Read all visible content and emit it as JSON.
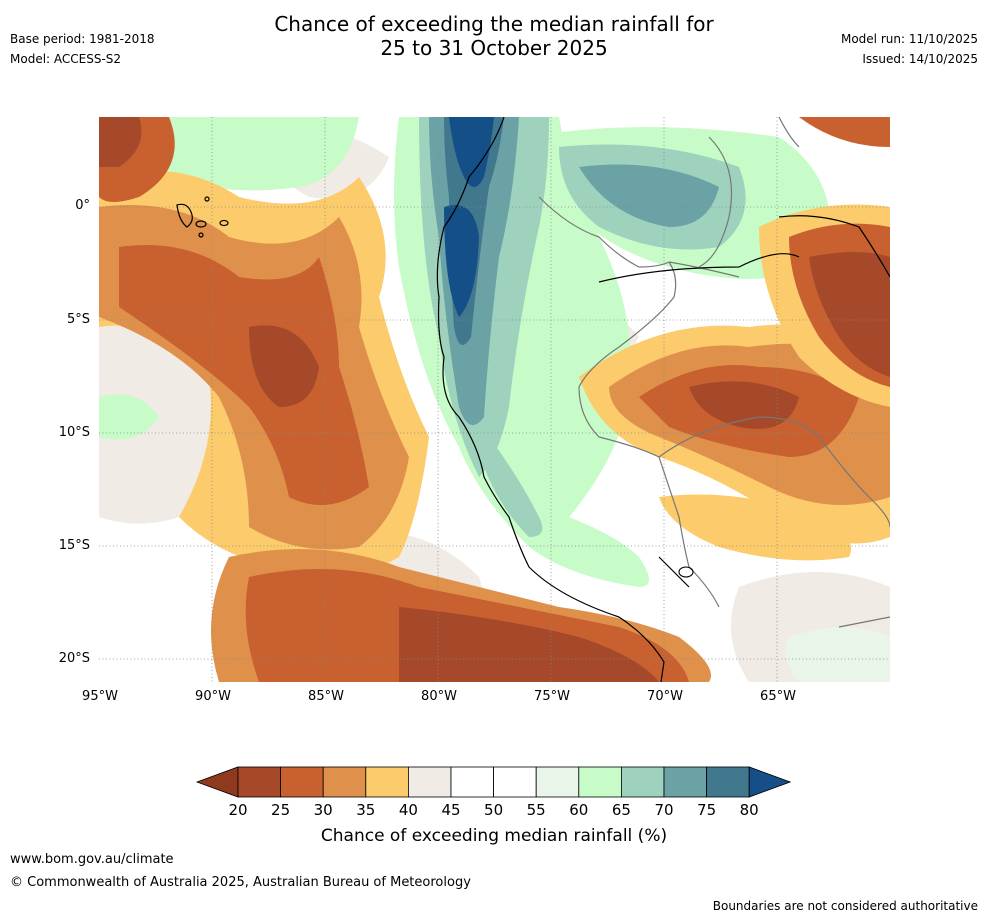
{
  "title": {
    "line1": "Chance of exceeding the median rainfall for",
    "line2": "25 to 31 October 2025"
  },
  "meta_left": {
    "base_period": "Base period: 1981-2018",
    "model": "Model: ACCESS-S2"
  },
  "meta_right": {
    "model_run": "Model run: 11/10/2025",
    "issued": "Issued: 14/10/2025"
  },
  "map": {
    "lat_labels": [
      "0°",
      "5°S",
      "10°S",
      "15°S",
      "20°S"
    ],
    "lon_labels": [
      "95°W",
      "90°W",
      "85°W",
      "80°W",
      "75°W",
      "70°W",
      "65°W"
    ]
  },
  "colorbar": {
    "title": "Chance of exceeding median rainfall (%)",
    "ticks": [
      "20",
      "25",
      "30",
      "35",
      "40",
      "45",
      "50",
      "55",
      "60",
      "65",
      "70",
      "75",
      "80"
    ],
    "colors": [
      "#a5492a",
      "#c8602f",
      "#df914b",
      "#fccb6b",
      "#f0ebe4",
      "#ffffff",
      "#ffffff",
      "#e9f5e9",
      "#c7fcc9",
      "#9ed2bd",
      "#6aa2a5",
      "#41788e"
    ],
    "low_color": "#8f3a1f",
    "high_color": "#154f87"
  },
  "footer": {
    "url": "www.bom.gov.au/climate",
    "copyright": "© Commonwealth of Australia 2025, Australian Bureau of Meteorology",
    "disclaimer": "Boundaries are not considered authoritative"
  }
}
